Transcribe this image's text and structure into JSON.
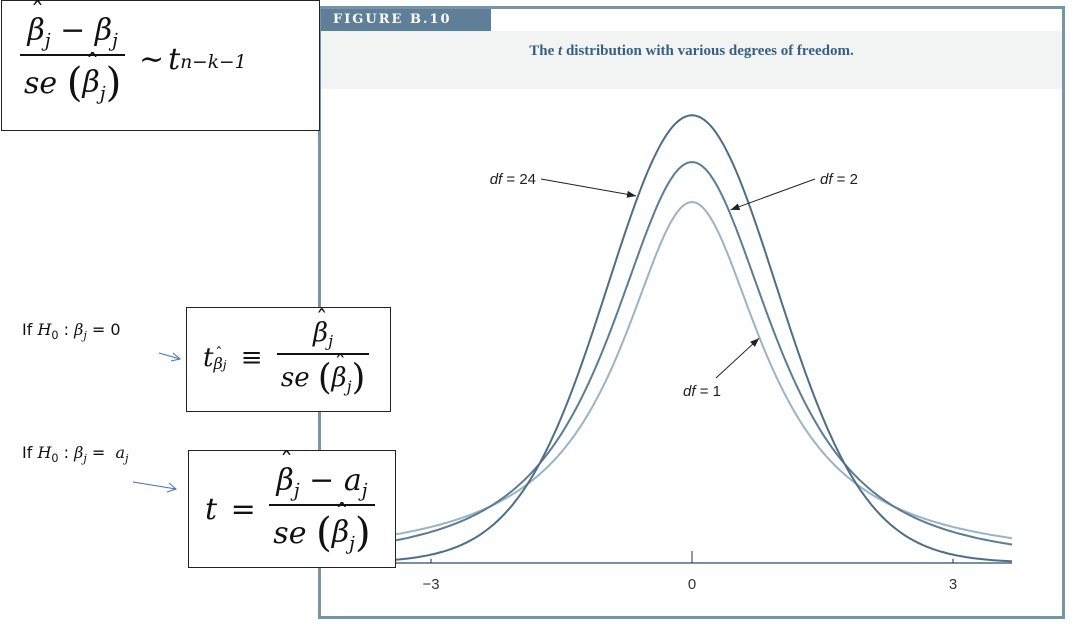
{
  "figure": {
    "tag": "FIGURE B.10",
    "caption_prefix": "The ",
    "caption_var": "t",
    "caption_suffix": " distribution with various degrees of freedom."
  },
  "formulas": {
    "main": {
      "numerator_a": "β",
      "numerator_sub_a": "j",
      "minus": " − ",
      "numerator_b": "β",
      "numerator_sub_b": "j",
      "den_se": "se",
      "den_beta": "β",
      "den_sub": "j",
      "relation": "∼",
      "dist": "t",
      "dist_sub": "n−k−1"
    },
    "test_zero": {
      "label_if": "If ",
      "label_h": "H",
      "label_h_sub": "0",
      "label_rest": " : ",
      "label_beta": "β",
      "label_beta_sub": "j",
      "label_eq": " = 0",
      "lhs": "t",
      "lhs_sub_beta": "β",
      "lhs_sub_j": "j",
      "equiv": "≡",
      "num_beta": "β",
      "num_sub": "j",
      "den_se": "se",
      "den_beta": "β",
      "den_sub": "j"
    },
    "test_a": {
      "label_if": "If ",
      "label_h": "H",
      "label_h_sub": "0",
      "label_rest": " : ",
      "label_beta": "β",
      "label_beta_sub": "j",
      "label_eq": " =  ",
      "label_a": "a",
      "label_a_sub": "j",
      "lhs": "t",
      "eq": "=",
      "num_beta": "β",
      "num_sub": "j",
      "num_minus": " − ",
      "num_a": "a",
      "num_a_sub": "j",
      "den_se": "se",
      "den_beta": "β",
      "den_sub": "j"
    }
  },
  "chart_data": {
    "type": "line",
    "title": "The t distribution with various degrees of freedom.",
    "x_range": [
      -3.95,
      5.3
    ],
    "x_ticks": [
      -3,
      0,
      3
    ],
    "x_tick_labels": [
      "−3",
      "0",
      "3"
    ],
    "series": [
      {
        "name": "df = 24",
        "df": 24,
        "peak_density": 0.396,
        "color": "#4e6d87"
      },
      {
        "name": "df = 2",
        "df": 2,
        "peak_density": 0.354,
        "color": "#5b7b96"
      },
      {
        "name": "df = 1",
        "df": 1,
        "peak_density": 0.318,
        "color": "#9ab3c7"
      }
    ],
    "annotations": [
      {
        "text": "df = 24",
        "series": "df = 24"
      },
      {
        "text": "df = 2",
        "series": "df = 2"
      },
      {
        "text": "df = 1",
        "series": "df = 1"
      }
    ],
    "grid": false
  }
}
